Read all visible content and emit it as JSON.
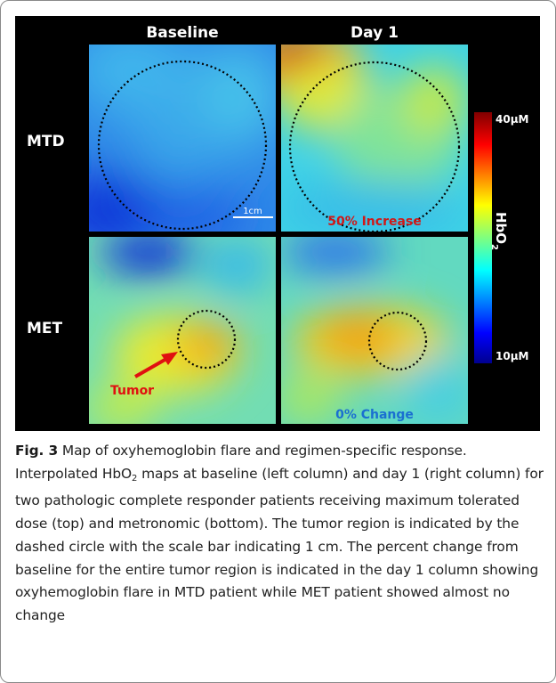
{
  "figure": {
    "column_headers": [
      "Baseline",
      "Day 1"
    ],
    "row_labels": [
      "MTD",
      "MET"
    ],
    "annotations": {
      "mtd_day1": "50% Increase",
      "met_day1": "0% Change",
      "scale_bar": "1cm",
      "tumor_label": "Tumor"
    },
    "colorbar": {
      "max_label": "40µM",
      "min_label": "10µM",
      "title_main": "HbO",
      "title_sub": "2"
    },
    "colors": {
      "increase_text": "#d01818",
      "change_text": "#1a6fd1",
      "tumor_text": "#e01010",
      "white": "#ffffff"
    }
  },
  "caption": {
    "label": "Fig. 3",
    "title": "Map of oxyhemoglobin flare and regimen-specific response.",
    "line_a": "Interpolated HbO",
    "line_a_sub": "2",
    "line_b": "maps at baseline (left column) and day 1 (right column) for two pathologic complete responder patients receiving maximum tolerated dose (top) and metronomic (bottom). The tumor region is indicated by the dashed circle with the scale bar indicating 1 cm. The percent change from baseline for the entire tumor region is indicated in the day 1 column showing oxyhemoglobin flare in MTD patient while MET patient showed almost no change"
  }
}
